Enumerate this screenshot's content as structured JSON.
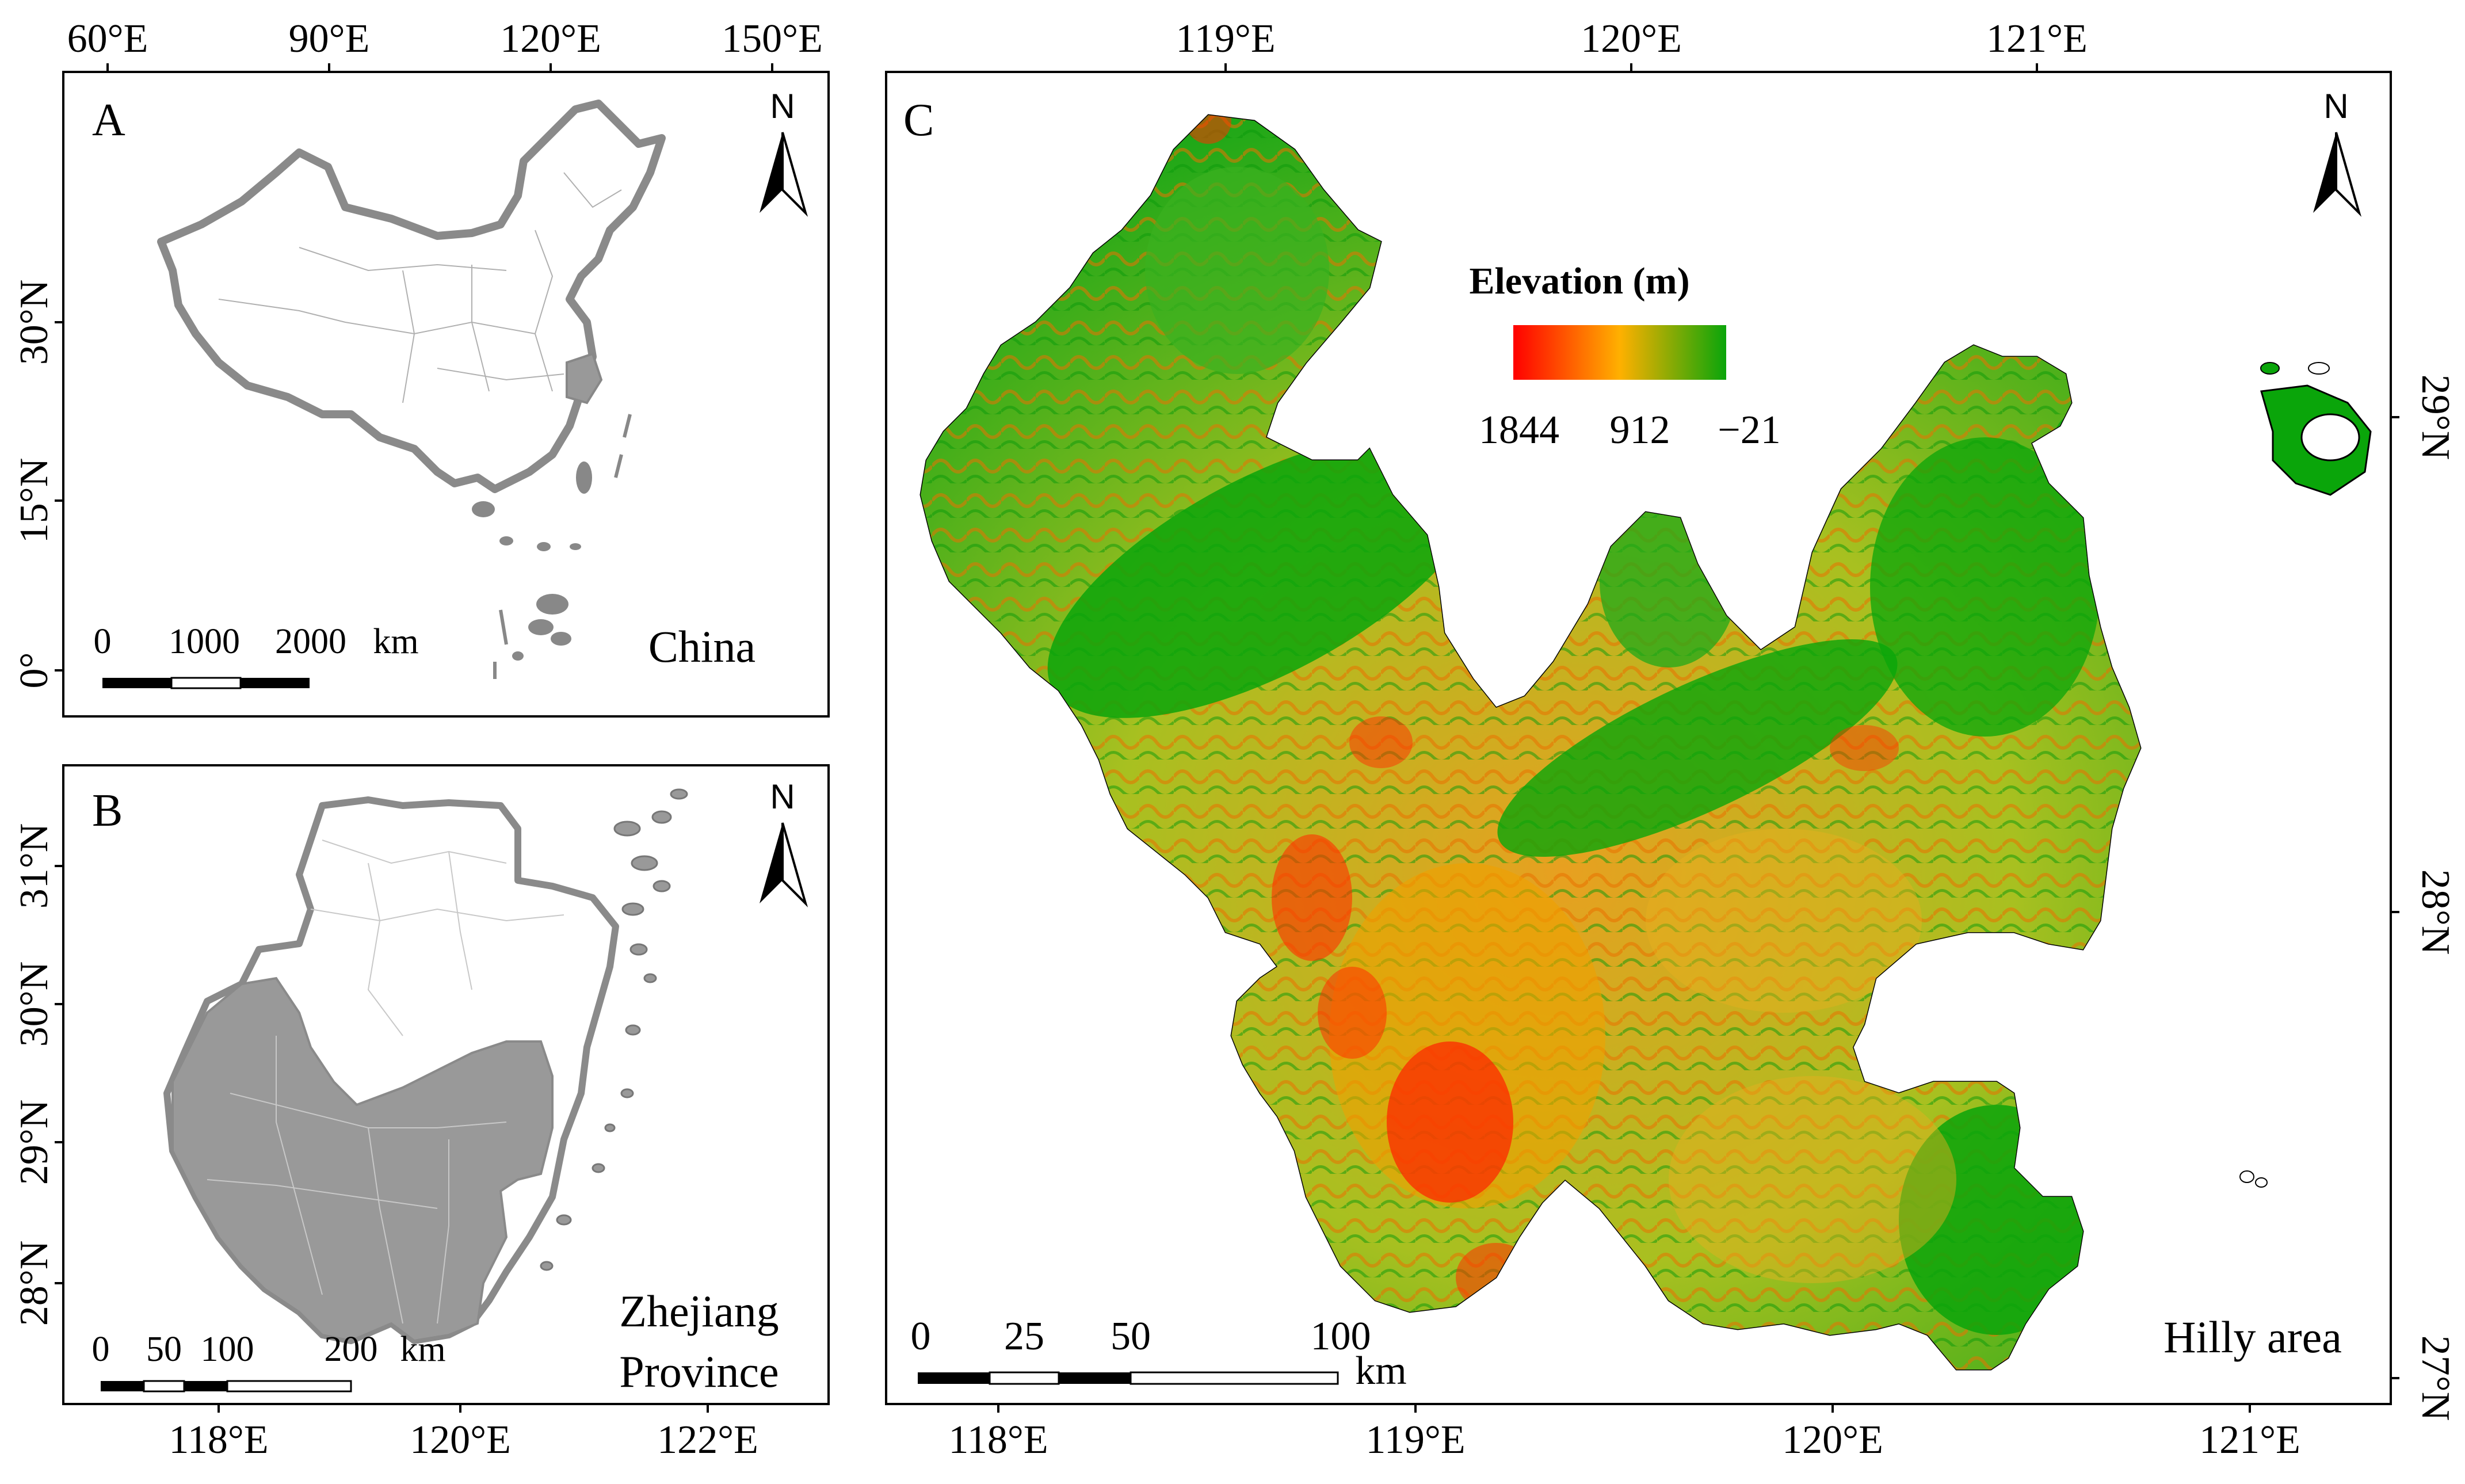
{
  "panels": {
    "a": {
      "letter": "A",
      "region_label": "China",
      "north": "N",
      "top_ticks": [
        "60°E",
        "90°E",
        "120°E",
        "150°E"
      ],
      "left_ticks": [
        "30°N",
        "15°N",
        "0°"
      ],
      "scale": {
        "labels": [
          "0",
          "1000",
          "2000"
        ],
        "unit": "km"
      }
    },
    "b": {
      "letter": "B",
      "region_label_line1": "Zhejiang",
      "region_label_line2": "Province",
      "north": "N",
      "bottom_ticks": [
        "118°E",
        "120°E",
        "122°E"
      ],
      "left_ticks": [
        "31°N",
        "30°N",
        "29°N",
        "28°N"
      ],
      "scale": {
        "labels": [
          "0",
          "50",
          "100",
          "200"
        ],
        "unit": "km"
      }
    },
    "c": {
      "letter": "C",
      "region_label": "Hilly area",
      "north": "N",
      "top_ticks": [
        "119°E",
        "120°E",
        "121°E"
      ],
      "bottom_ticks": [
        "118°E",
        "119°E",
        "120°E",
        "121°E"
      ],
      "right_ticks": [
        "29°N",
        "28°N",
        "27°N"
      ],
      "scale": {
        "labels": [
          "0",
          "25",
          "50",
          "100"
        ],
        "unit": "km"
      },
      "legend": {
        "title": "Elevation (m)",
        "labels": [
          "1844",
          "912",
          "−21"
        ],
        "colors": [
          "#ff0000",
          "#ffb000",
          "#0aa50a"
        ]
      }
    }
  },
  "colors": {
    "highlight": "#999999",
    "boundary": "#7f7f7f",
    "low": "#0aa50a",
    "mid": "#e0c000",
    "high": "#ff2000"
  }
}
